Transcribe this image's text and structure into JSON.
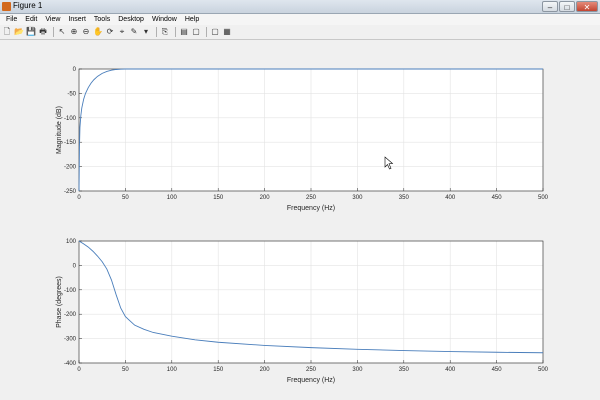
{
  "window": {
    "title": "Figure 1",
    "controls": [
      "–",
      "□",
      "✕"
    ]
  },
  "menu": [
    "File",
    "Edit",
    "View",
    "Insert",
    "Tools",
    "Desktop",
    "Window",
    "Help"
  ],
  "toolbar": {
    "icons": [
      "new-figure-icon",
      "open-file-icon",
      "save-icon",
      "print-icon",
      "pointer-icon",
      "zoom-in-icon",
      "zoom-out-icon",
      "pan-icon",
      "rotate-icon",
      "data-cursor-icon",
      "brush-icon",
      "link-icon",
      "colorbar-icon",
      "legend-icon",
      "hide-plot-tools-icon",
      "show-plot-tools-icon"
    ],
    "glyphs": [
      "🗋",
      "📂",
      "💾",
      "🖶",
      "↖",
      "⊕",
      "⊖",
      "✋",
      "⟳",
      "⌖",
      "✎",
      "▾",
      "⎘",
      "▤",
      "▢",
      "▦"
    ]
  },
  "chart_data": [
    {
      "type": "line",
      "xlabel": "Frequency (Hz)",
      "ylabel": "Magnitude (dB)",
      "xlim": [
        0,
        500
      ],
      "ylim": [
        -250,
        0
      ],
      "xticks": [
        0,
        50,
        100,
        150,
        200,
        250,
        300,
        350,
        400,
        450,
        500
      ],
      "yticks": [
        0,
        -50,
        -100,
        -150,
        -200,
        -250
      ],
      "grid": true,
      "series": [
        {
          "color": "#4a7ebb",
          "x": [
            0,
            0.5,
            1,
            2,
            3,
            5,
            7,
            10,
            13,
            16,
            20,
            25,
            30,
            35,
            40,
            45,
            50,
            500
          ],
          "y": [
            -250,
            -160,
            -120,
            -95,
            -80,
            -62,
            -50,
            -38,
            -29,
            -22,
            -15,
            -9,
            -5,
            -2.5,
            -1,
            -0.3,
            0,
            0
          ]
        }
      ]
    },
    {
      "type": "line",
      "xlabel": "Frequency (Hz)",
      "ylabel": "Phase (degrees)",
      "xlim": [
        0,
        500
      ],
      "ylim": [
        -400,
        100
      ],
      "xticks": [
        0,
        50,
        100,
        150,
        200,
        250,
        300,
        350,
        400,
        450,
        500
      ],
      "yticks": [
        100,
        0,
        -100,
        -200,
        -300,
        -400
      ],
      "grid": true,
      "series": [
        {
          "color": "#4a7ebb",
          "x": [
            0,
            5,
            10,
            15,
            20,
            25,
            30,
            35,
            40,
            45,
            50,
            60,
            70,
            80,
            100,
            125,
            150,
            200,
            250,
            300,
            350,
            400,
            450,
            500
          ],
          "y": [
            100,
            88,
            75,
            58,
            38,
            15,
            -15,
            -60,
            -120,
            -175,
            -210,
            -245,
            -262,
            -275,
            -290,
            -305,
            -315,
            -328,
            -337,
            -344,
            -349,
            -353,
            -356,
            -358
          ]
        }
      ]
    }
  ]
}
